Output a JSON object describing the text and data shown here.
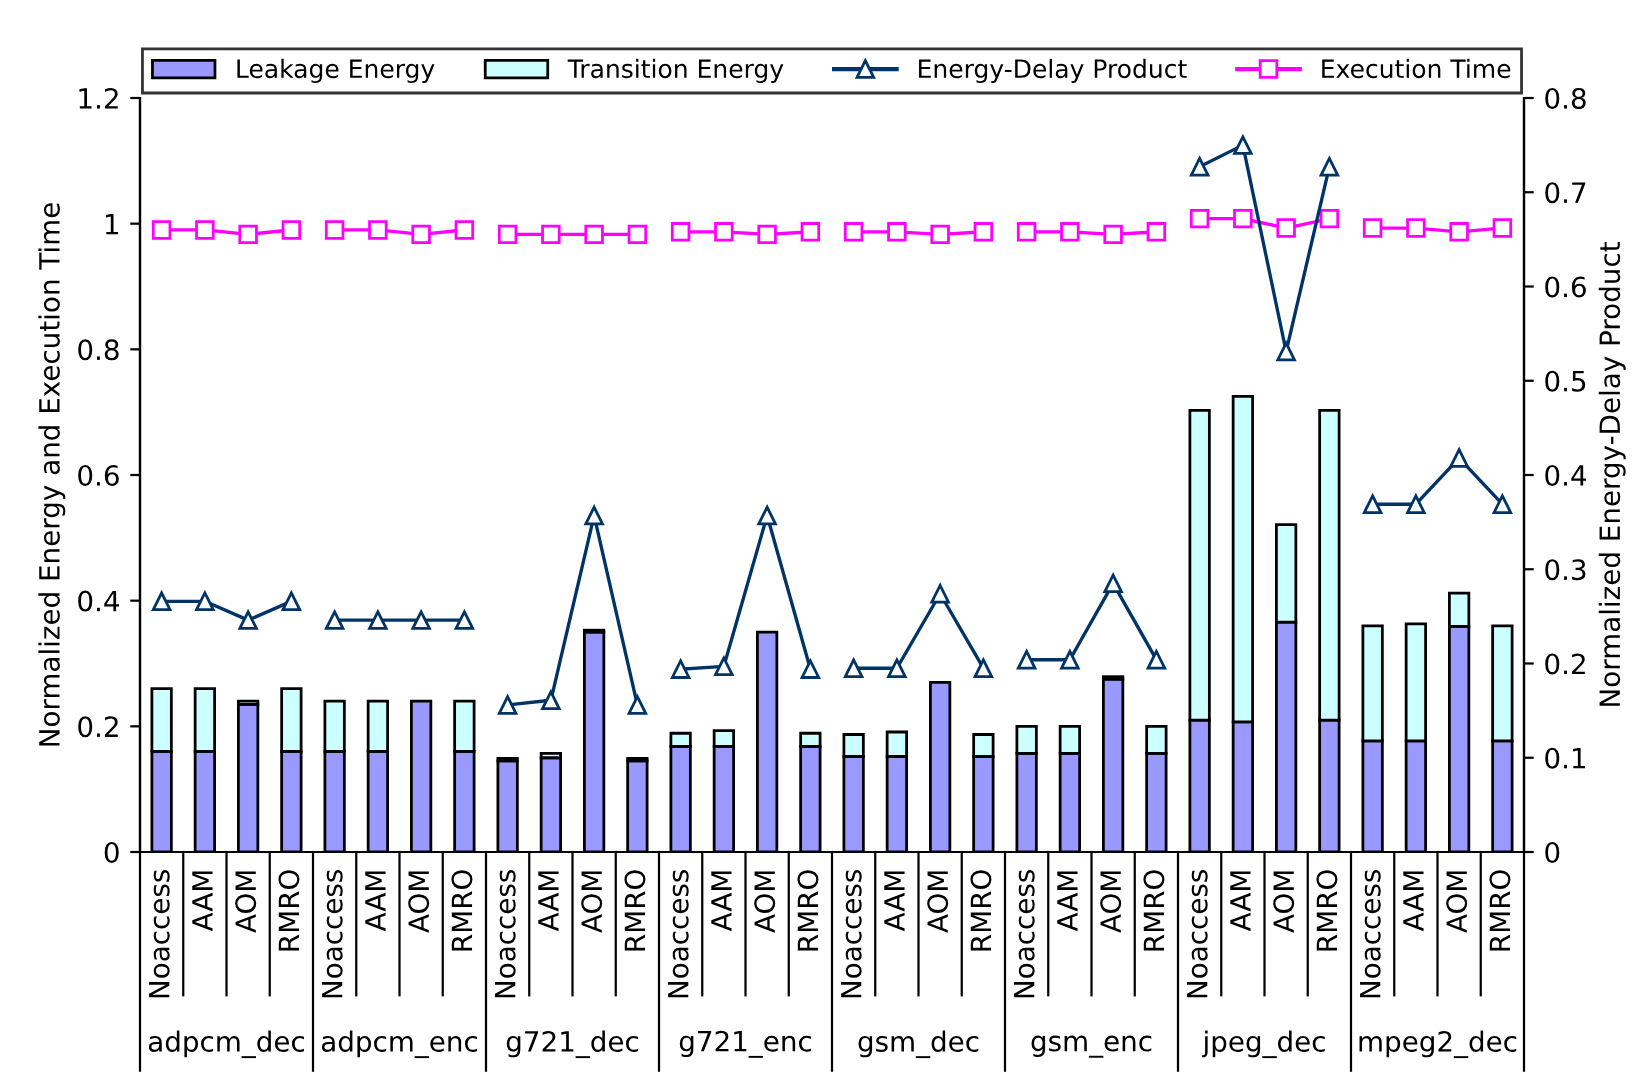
{
  "chart_data": {
    "type": "bar",
    "stacked": true,
    "categories": [
      "Noaccess",
      "AAM",
      "AOM",
      "RMRO",
      "Noaccess",
      "AAM",
      "AOM",
      "RMRO",
      "Noaccess",
      "AAM",
      "AOM",
      "RMRO",
      "Noaccess",
      "AAM",
      "AOM",
      "RMRO",
      "Noaccess",
      "AAM",
      "AOM",
      "RMRO",
      "Noaccess",
      "AAM",
      "AOM",
      "RMRO",
      "Noaccess",
      "AAM",
      "AOM",
      "RMRO",
      "Noaccess",
      "AAM",
      "AOM",
      "RMRO"
    ],
    "annotations": [
      "adpcm_dec",
      "adpcm_enc",
      "g721_dec",
      "g721_enc",
      "gsm_dec",
      "gsm_enc",
      "jpeg_dec",
      "mpeg2_dec"
    ],
    "series": [
      {
        "name": "Leakage Energy",
        "color": "#9999ff",
        "values": [
          0.16,
          0.16,
          0.235,
          0.16,
          0.16,
          0.16,
          0.24,
          0.16,
          0.145,
          0.15,
          0.35,
          0.145,
          0.168,
          0.168,
          0.35,
          0.168,
          0.152,
          0.152,
          0.27,
          0.152,
          0.157,
          0.157,
          0.275,
          0.157,
          0.21,
          0.207,
          0.366,
          0.21,
          0.177,
          0.177,
          0.359,
          0.177
        ]
      },
      {
        "name": "Transition Energy",
        "color": "#ccffff",
        "values": [
          0.1,
          0.1,
          0.005,
          0.1,
          0.08,
          0.08,
          null,
          0.08,
          0.004,
          0.007,
          0.003,
          0.004,
          0.021,
          0.025,
          null,
          0.021,
          0.035,
          0.039,
          null,
          0.035,
          0.043,
          0.043,
          0.004,
          0.043,
          0.493,
          0.518,
          0.155,
          0.493,
          0.183,
          0.186,
          0.053,
          0.183
        ]
      },
      {
        "name": "Energy-Delay Product",
        "type": "line",
        "axis": "y2",
        "marker": "triangle",
        "color": "#003366",
        "values": [
          0.266,
          0.266,
          0.246,
          0.266,
          0.246,
          0.246,
          0.246,
          0.246,
          0.156,
          0.161,
          0.357,
          0.156,
          0.194,
          0.197,
          0.357,
          0.194,
          0.195,
          0.195,
          0.274,
          0.195,
          0.204,
          0.204,
          0.285,
          0.204,
          0.727,
          0.75,
          0.531,
          0.727,
          0.369,
          0.369,
          0.418,
          0.369
        ]
      },
      {
        "name": "Execution Time",
        "type": "line",
        "marker": "square",
        "color": "#ff00ff",
        "values": [
          0.99,
          0.99,
          0.983,
          0.99,
          0.99,
          0.99,
          0.983,
          0.99,
          0.983,
          0.983,
          0.983,
          0.983,
          0.987,
          0.987,
          0.983,
          0.987,
          0.987,
          0.987,
          0.983,
          0.987,
          0.987,
          0.987,
          0.983,
          0.987,
          1.008,
          1.008,
          0.993,
          1.008,
          0.993,
          0.993,
          0.987,
          0.993
        ]
      }
    ],
    "ylabel": "Normalized Energy and Execution Time",
    "y2label": "Normalized Energy-Delay Product",
    "ylim": [
      0,
      1.2
    ],
    "yticks": [
      0,
      0.2,
      0.4,
      0.6,
      0.8,
      1,
      1.2
    ],
    "y2lim": [
      0,
      0.8
    ],
    "y2ticks": [
      0,
      0.1,
      0.2,
      0.3,
      0.4,
      0.5,
      0.6,
      0.7,
      0.8
    ],
    "grid": false,
    "legend": "top"
  }
}
